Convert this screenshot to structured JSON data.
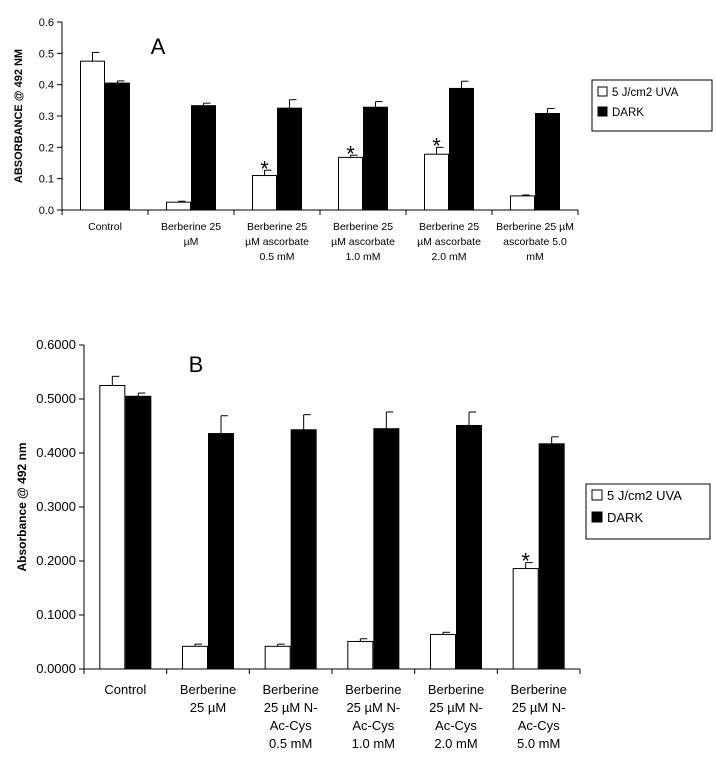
{
  "chart_data": [
    {
      "type": "bar",
      "panel_label": "A",
      "title": "",
      "xlabel": "",
      "ylabel": "ABSORBANCE @ 492 NM",
      "ylim": [
        0,
        0.6
      ],
      "yticks": [
        "0.0",
        "0.1",
        "0.2",
        "0.3",
        "0.4",
        "0.5",
        "0.6"
      ],
      "categories": [
        [
          "Control"
        ],
        [
          "Berberine 25",
          "µM"
        ],
        [
          "Berberine 25",
          "µM ascorbate",
          "0.5 mM"
        ],
        [
          "Berberine 25",
          "µM ascorbate",
          "1.0 mM"
        ],
        [
          "Berberine 25",
          "µM ascorbate",
          "2.0 mM"
        ],
        [
          "Berberine 25 µM",
          "ascorbate 5.0",
          "mM"
        ]
      ],
      "series": [
        {
          "name": "5 J/cm2 UVA",
          "color": "#ffffff",
          "values": [
            0.475,
            0.025,
            0.11,
            0.168,
            0.178,
            0.045
          ],
          "errors": [
            0.028,
            0.003,
            0.017,
            0.007,
            0.022,
            0.003
          ]
        },
        {
          "name": "DARK",
          "color": "#000000",
          "values": [
            0.405,
            0.333,
            0.325,
            0.328,
            0.388,
            0.308
          ],
          "errors": [
            0.007,
            0.008,
            0.027,
            0.018,
            0.023,
            0.016
          ]
        }
      ],
      "annotations": [
        {
          "text": "*",
          "category_index": 2
        },
        {
          "text": "*",
          "category_index": 3
        },
        {
          "text": "*",
          "category_index": 4
        }
      ],
      "legend_position": "right"
    },
    {
      "type": "bar",
      "panel_label": "B",
      "title": "",
      "xlabel": "",
      "ylabel": "Absorbance @ 492 nm",
      "ylim": [
        0,
        0.6
      ],
      "yticks": [
        "0.0000",
        "0.1000",
        "0.2000",
        "0.3000",
        "0.4000",
        "0.5000",
        "0.6000"
      ],
      "categories": [
        [
          "Control"
        ],
        [
          "Berberine",
          "25 µM"
        ],
        [
          "Berberine",
          "25 µM N-",
          "Ac-Cys",
          "0.5 mM"
        ],
        [
          "Berberine",
          "25 µM N-",
          "Ac-Cys",
          "1.0 mM"
        ],
        [
          "Berberine",
          "25 µM N-",
          "Ac-Cys",
          "2.0 mM"
        ],
        [
          "Berberine",
          "25 µM N-",
          "Ac-Cys",
          "5.0 mM"
        ]
      ],
      "series": [
        {
          "name": "5 J/cm2 UVA",
          "color": "#ffffff",
          "values": [
            0.525,
            0.042,
            0.042,
            0.051,
            0.064,
            0.186
          ],
          "errors": [
            0.017,
            0.004,
            0.004,
            0.005,
            0.004,
            0.011
          ]
        },
        {
          "name": "DARK",
          "color": "#000000",
          "values": [
            0.505,
            0.436,
            0.443,
            0.445,
            0.451,
            0.417
          ],
          "errors": [
            0.006,
            0.033,
            0.028,
            0.031,
            0.025,
            0.013
          ]
        }
      ],
      "annotations": [
        {
          "text": "*",
          "category_index": 5
        }
      ],
      "legend_position": "right"
    }
  ]
}
